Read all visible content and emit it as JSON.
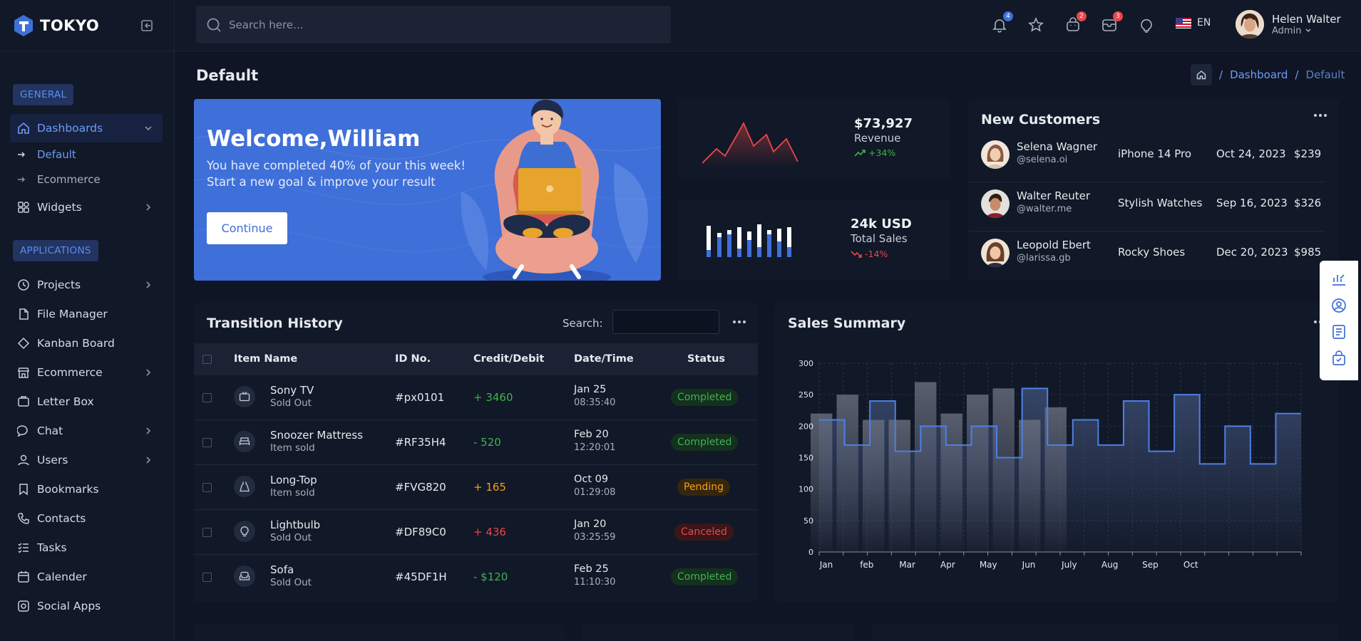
{
  "brand": {
    "name": "TOKYO"
  },
  "search": {
    "placeholder": "Search here..."
  },
  "topbar": {
    "notifications_count": "4",
    "cart_count": "2",
    "messages_count": "3",
    "language": "EN",
    "user_name": "Helen Walter",
    "user_role": "Admin"
  },
  "sidebar": {
    "general_label": "GENERAL",
    "applications_label": "APPLICATIONS",
    "dashboards": "Dashboards",
    "default": "Default",
    "ecommerce_sub": "Ecommerce",
    "widgets": "Widgets",
    "projects": "Projects",
    "file_manager": "File Manager",
    "kanban": "Kanban Board",
    "ecommerce": "Ecommerce",
    "letter_box": "Letter Box",
    "chat": "Chat",
    "users": "Users",
    "bookmarks": "Bookmarks",
    "contacts": "Contacts",
    "tasks": "Tasks",
    "calender": "Calender",
    "social_apps": "Social Apps"
  },
  "page": {
    "title": "Default",
    "breadcrumb_dashboard": "Dashboard",
    "breadcrumb_default": "Default"
  },
  "welcome": {
    "title": "Welcome,William",
    "line1": "You have completed 40% of your this week!",
    "line2": "Start a new goal & improve your result",
    "button": "Continue"
  },
  "revenue": {
    "value": "$73,927",
    "label": "Revenue",
    "change": "+34%"
  },
  "sales": {
    "value": "24k USD",
    "label": "Total Sales",
    "change": "-14%"
  },
  "customers": {
    "title": "New Customers",
    "rows": [
      {
        "name": "Selena Wagner",
        "handle": "@selena.oi",
        "product": "iPhone 14 Pro",
        "date": "Oct 24, 2023",
        "amount": "$239"
      },
      {
        "name": "Walter Reuter",
        "handle": "@walter.me",
        "product": "Stylish Watches",
        "date": "Sep 16, 2023",
        "amount": "$326"
      },
      {
        "name": "Leopold Ebert",
        "handle": "@larissa.gb",
        "product": "Rocky Shoes",
        "date": "Dec 20, 2023",
        "amount": "$985"
      }
    ]
  },
  "history": {
    "title": "Transition History",
    "search_label": "Search:",
    "headers": {
      "item": "Item Name",
      "id": "ID No.",
      "cd": "Credit/Debit",
      "date": "Date/Time",
      "status": "Status"
    },
    "rows": [
      {
        "icon": "tv-icon",
        "name": "Sony TV",
        "sub": "Sold Out",
        "id": "#px0101",
        "cd": "+ 3460",
        "date": "Jan 25",
        "time": "08:35:40",
        "status": "Completed"
      },
      {
        "icon": "bed-icon",
        "name": "Snoozer Mattress",
        "sub": "Item sold",
        "id": "#RF35H4",
        "cd": "- 520",
        "date": "Feb 20",
        "time": "12:20:01",
        "status": "Completed"
      },
      {
        "icon": "dress-icon",
        "name": "Long-Top",
        "sub": "Item sold",
        "id": "#FVG820",
        "cd": "+ 165",
        "date": "Oct 09",
        "time": "01:29:08",
        "status": "Pending"
      },
      {
        "icon": "bulb-icon",
        "name": "Lightbulb",
        "sub": "Sold Out",
        "id": "#DF89C0",
        "cd": "+ 436",
        "date": "Jan 20",
        "time": "03:25:59",
        "status": "Canceled"
      },
      {
        "icon": "sofa-icon",
        "name": "Sofa",
        "sub": "Sold Out",
        "id": "#45DF1H",
        "cd": "- $120",
        "date": "Feb 25",
        "time": "11:10:30",
        "status": "Completed"
      }
    ]
  },
  "summary": {
    "title": "Sales Summary"
  },
  "chart_data": {
    "type": "bar",
    "title": "Sales Summary",
    "categories": [
      "Jan",
      "feb",
      "Mar",
      "Apr",
      "May",
      "Jun",
      "July",
      "Aug",
      "Sep",
      "Oct"
    ],
    "ylim": [
      0,
      300
    ],
    "yticks": [
      0,
      50,
      100,
      150,
      200,
      250,
      300
    ],
    "bars": [
      220,
      250,
      210,
      210,
      270,
      220,
      250,
      260,
      210,
      230
    ],
    "step_line": [
      210,
      170,
      240,
      160,
      200,
      170,
      200,
      150,
      260,
      170,
      210,
      170,
      240,
      160,
      250,
      140,
      200,
      140,
      220
    ],
    "colors": {
      "bars": "#5b6272",
      "line": "#4d80e6"
    }
  }
}
